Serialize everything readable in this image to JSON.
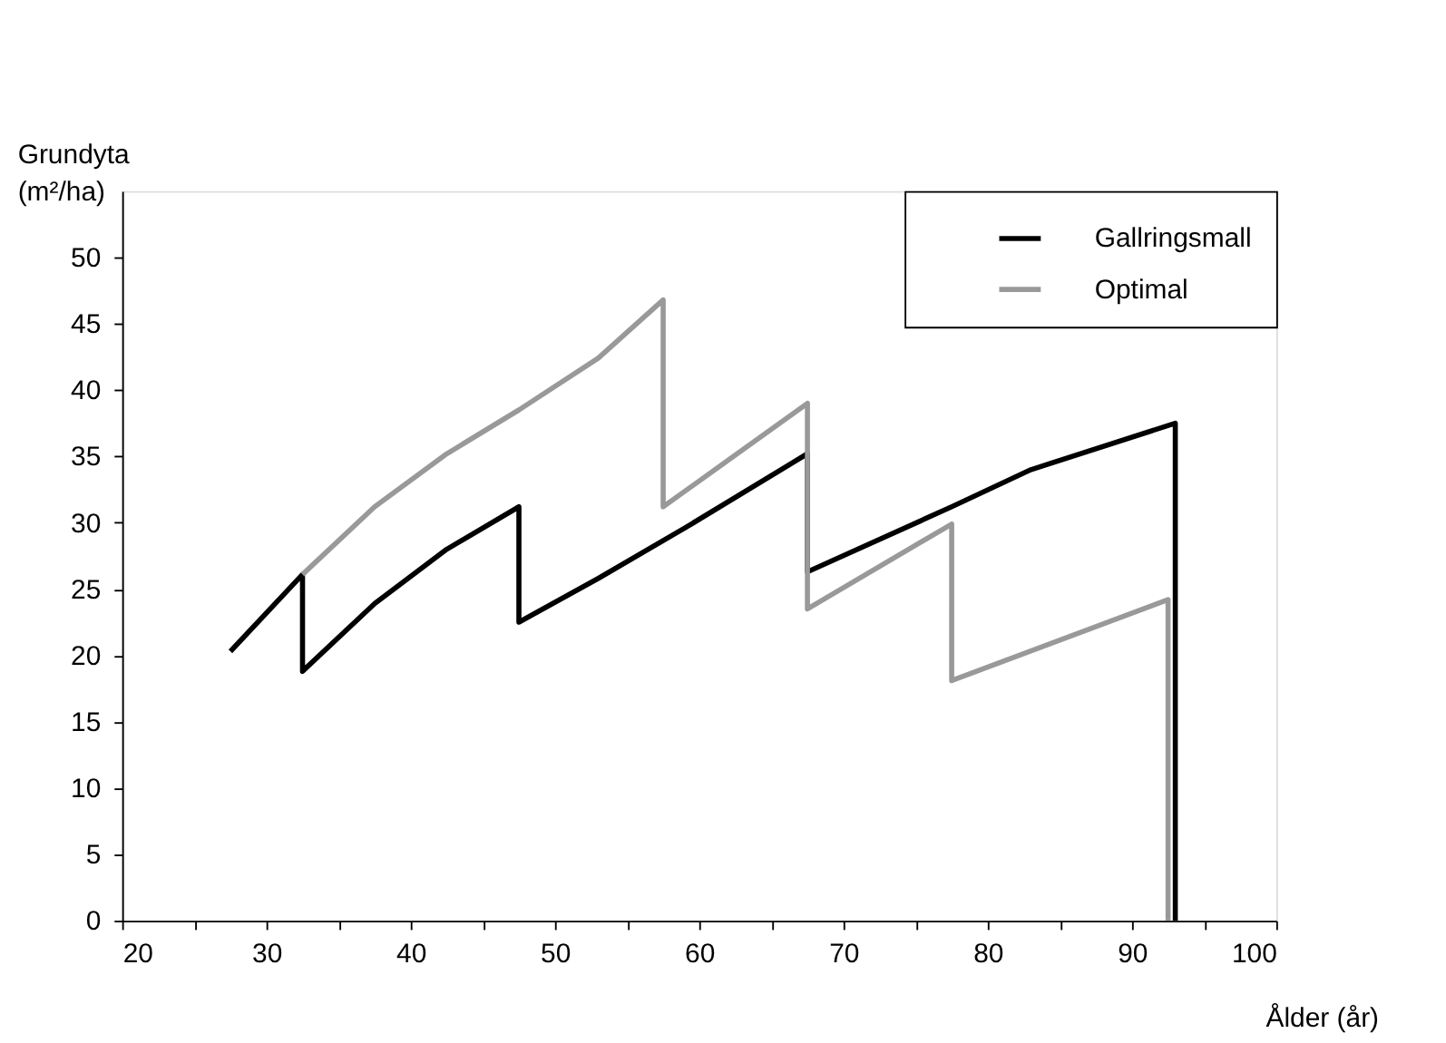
{
  "chart_data": {
    "type": "line",
    "xlabel": "Ålder (år)",
    "ylabel": "Grundyta (m²/ha)",
    "xlim": [
      20,
      100
    ],
    "ylim": [
      0,
      55
    ],
    "xticks": [
      20,
      {
        "value": 25,
        "label": null
      },
      30,
      {
        "value": 35,
        "label": null
      },
      40,
      {
        "value": 45,
        "label": null
      },
      50,
      {
        "value": 55,
        "label": null
      },
      60,
      {
        "value": 65,
        "label": null
      },
      70,
      {
        "value": 75,
        "label": null
      },
      80,
      {
        "value": 85,
        "label": null
      },
      90,
      {
        "value": 95,
        "label": null
      },
      100
    ],
    "yticks": [
      0,
      5,
      10,
      15,
      20,
      25,
      30,
      35,
      40,
      45,
      50
    ],
    "grid": false,
    "legend": "top right",
    "line_style": "solid",
    "marker": "none",
    "series": [
      {
        "name": "Gallringsmall",
        "color": "#000000",
        "x": [
          27.5,
          32.5,
          32.5,
          37.5,
          42.5,
          47.5,
          47.5,
          53,
          59,
          67.5,
          67.5,
          77.5,
          83,
          93,
          93
        ],
        "values": [
          20.3,
          26.1,
          18.8,
          23.9,
          28,
          31.2,
          22.5,
          25.8,
          29.6,
          35.2,
          26.3,
          31.2,
          34,
          37.5,
          0
        ]
      },
      {
        "name": "Optimal",
        "color": "#999999",
        "x": [
          32.5,
          37.5,
          42.5,
          47.5,
          53,
          57.5,
          57.5,
          67.5,
          67.5,
          77.5,
          77.5,
          92.5,
          92.5
        ],
        "values": [
          26.1,
          31.2,
          35.2,
          38.5,
          42.4,
          46.8,
          31.2,
          39,
          23.5,
          29.9,
          18.1,
          24.2,
          0
        ]
      }
    ]
  }
}
